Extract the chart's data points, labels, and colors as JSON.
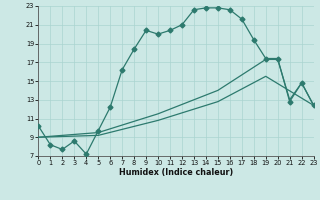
{
  "xlabel": "Humidex (Indice chaleur)",
  "bg_color": "#cce8e5",
  "grid_color": "#aad4d0",
  "line_color": "#2d7a6e",
  "xlim": [
    0,
    23
  ],
  "ylim": [
    7,
    23
  ],
  "yticks": [
    7,
    9,
    11,
    13,
    15,
    17,
    19,
    21,
    23
  ],
  "xticks": [
    0,
    1,
    2,
    3,
    4,
    5,
    6,
    7,
    8,
    9,
    10,
    11,
    12,
    13,
    14,
    15,
    16,
    17,
    18,
    19,
    20,
    21,
    22,
    23
  ],
  "curve_top_x": [
    0,
    1,
    2,
    3,
    4,
    5,
    6,
    7,
    8,
    9,
    10,
    11,
    12,
    13,
    14,
    15,
    16,
    17,
    18,
    19,
    20,
    21,
    22,
    23
  ],
  "curve_top_y": [
    10.2,
    8.2,
    7.7,
    8.6,
    7.2,
    9.7,
    12.2,
    16.2,
    18.4,
    20.4,
    20.0,
    20.4,
    21.0,
    22.6,
    22.8,
    22.8,
    22.6,
    21.6,
    19.4,
    17.4,
    17.4,
    12.8,
    14.8,
    12.4
  ],
  "curve_mid_x": [
    0,
    5,
    10,
    15,
    19,
    20,
    21,
    22,
    23
  ],
  "curve_mid_y": [
    9.0,
    9.5,
    11.5,
    14.0,
    17.3,
    17.3,
    13.0,
    14.8,
    12.4
  ],
  "curve_low_x": [
    0,
    5,
    10,
    15,
    19,
    23
  ],
  "curve_low_y": [
    9.0,
    9.2,
    10.8,
    12.8,
    15.5,
    12.4
  ]
}
